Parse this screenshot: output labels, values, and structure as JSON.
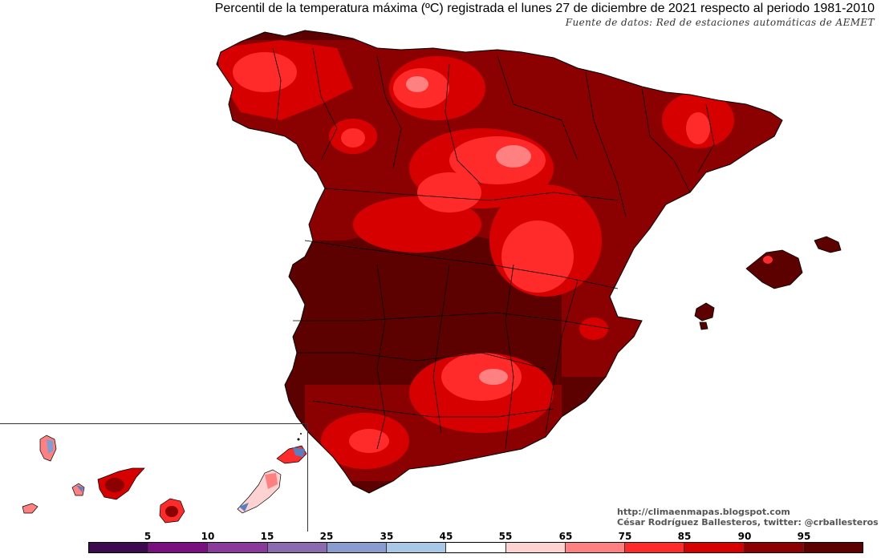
{
  "header": {
    "title": "Percentil de la temperatura máxima (ºC) registrada el lunes 27 de diciembre de 2021 respecto al periodo 1981-2010",
    "source": "Fuente de datos: Red de estaciones automáticas de AEMET"
  },
  "credits": {
    "url": "http://climaenmapas.blogspot.com",
    "author": "César Rodríguez Ballesteros, twitter: @crballesteros"
  },
  "legend": {
    "labels": [
      "5",
      "10",
      "15",
      "25",
      "35",
      "45",
      "55",
      "65",
      "75",
      "85",
      "90",
      "95"
    ],
    "colors": [
      "#3d0a4f",
      "#7a1080",
      "#8a3a9a",
      "#8c6ab0",
      "#8a9ccf",
      "#a9c7e6",
      "#ffffff",
      "#ffd2d2",
      "#ff8080",
      "#ff2a2a",
      "#d60000",
      "#8b0000",
      "#5c0000"
    ]
  },
  "palette": {
    "darkest": "#5c0000",
    "dark": "#8b0000",
    "red": "#d60000",
    "bright": "#ff2a2a",
    "light": "#ff8080",
    "pale": "#ffd2d2",
    "blue": "#5a7fc0"
  }
}
